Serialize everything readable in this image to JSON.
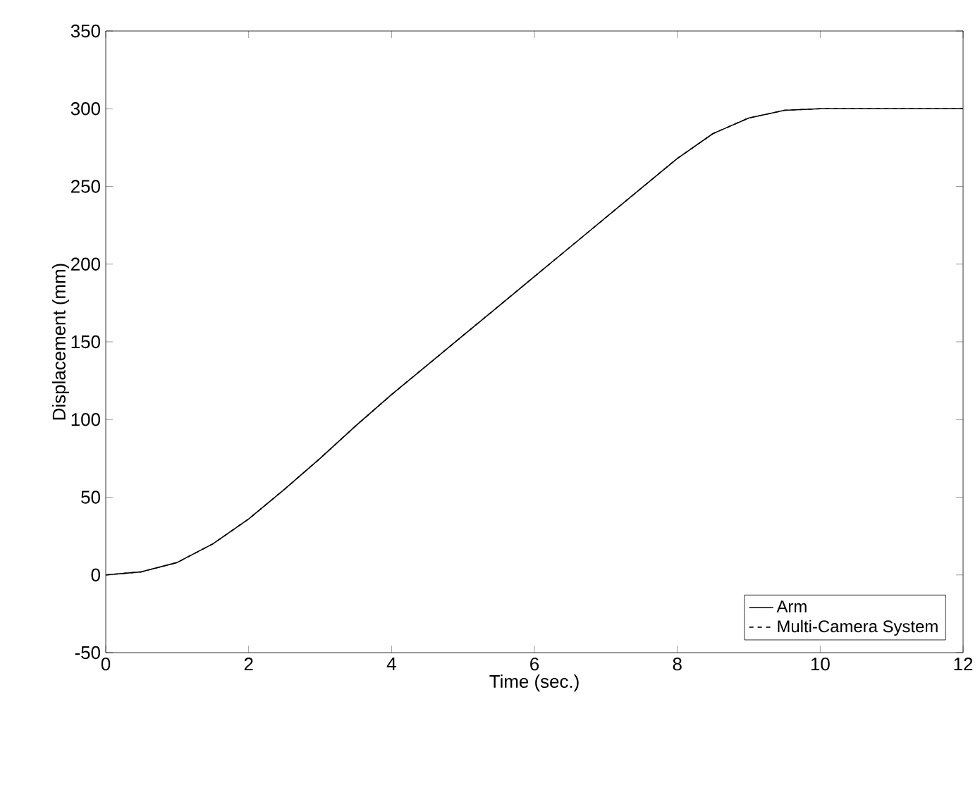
{
  "chart_data": {
    "type": "line",
    "xlabel": "Time (sec.)",
    "ylabel": "Displacement (mm)",
    "x": [
      0,
      0.5,
      1,
      1.5,
      2,
      2.5,
      3,
      3.5,
      4,
      4.5,
      5,
      5.5,
      6,
      6.5,
      7,
      7.5,
      8,
      8.5,
      9,
      9.5,
      10,
      11,
      12
    ],
    "series": [
      {
        "name": "Arm",
        "color": "#000000",
        "line_style": "solid",
        "values": [
          0,
          2,
          8,
          20,
          36,
          55,
          75,
          96,
          116,
          135,
          154,
          173,
          192,
          211,
          230,
          249,
          268,
          284,
          294,
          299,
          300,
          300,
          300
        ]
      },
      {
        "name": "Multi-Camera System",
        "color": "#000000",
        "line_style": "dashed",
        "values": [
          0,
          2,
          8,
          20,
          36,
          55,
          75,
          96,
          116,
          135,
          154,
          173,
          192,
          211,
          230,
          249,
          268,
          284,
          294,
          299,
          300,
          300,
          300
        ]
      }
    ],
    "xlim": [
      0,
      12
    ],
    "ylim": [
      -50,
      350
    ],
    "xticks": [
      0,
      2,
      4,
      6,
      8,
      10,
      12
    ],
    "yticks": [
      -50,
      0,
      50,
      100,
      150,
      200,
      250,
      300,
      350
    ],
    "grid": false,
    "legend": "bottom right",
    "marker": "none"
  }
}
